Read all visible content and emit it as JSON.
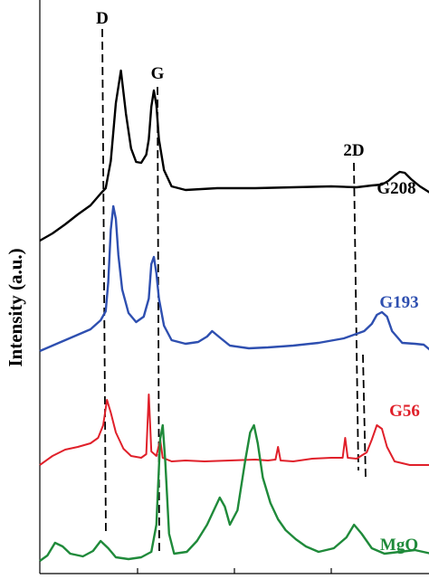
{
  "chart_data": {
    "type": "line",
    "title": "",
    "xlabel": "",
    "ylabel": "Intensity (a.u.)",
    "grid": false,
    "legend": "labels placed at the right end of each curve",
    "peak_labels": [
      "D",
      "G",
      "2D"
    ],
    "series": [
      {
        "name": "G208",
        "color": "#000000",
        "points": [
          [
            0,
            0
          ],
          [
            10,
            8
          ],
          [
            20,
            18
          ],
          [
            30,
            29
          ],
          [
            40,
            39
          ],
          [
            48,
            52
          ],
          [
            52,
            58
          ],
          [
            56,
            88
          ],
          [
            60,
            152
          ],
          [
            64,
            188
          ],
          [
            68,
            140
          ],
          [
            72,
            102
          ],
          [
            76,
            87
          ],
          [
            80,
            86
          ],
          [
            84,
            95
          ],
          [
            86,
            112
          ],
          [
            88,
            148
          ],
          [
            90,
            166
          ],
          [
            92,
            150
          ],
          [
            94,
            112
          ],
          [
            98,
            78
          ],
          [
            104,
            60
          ],
          [
            115,
            56
          ],
          [
            140,
            58
          ],
          [
            170,
            58
          ],
          [
            200,
            59
          ],
          [
            230,
            60
          ],
          [
            250,
            59
          ],
          [
            262,
            61
          ],
          [
            270,
            62
          ],
          [
            275,
            66
          ],
          [
            280,
            72
          ],
          [
            284,
            76
          ],
          [
            288,
            75
          ],
          [
            293,
            68
          ],
          [
            300,
            60
          ],
          [
            309,
            52
          ]
        ]
      },
      {
        "name": "G193",
        "color": "#2e4fb0",
        "points": [
          [
            0,
            0
          ],
          [
            10,
            6
          ],
          [
            20,
            12
          ],
          [
            30,
            18
          ],
          [
            40,
            24
          ],
          [
            48,
            34
          ],
          [
            52,
            44
          ],
          [
            54,
            76
          ],
          [
            56,
            134
          ],
          [
            58,
            160
          ],
          [
            60,
            146
          ],
          [
            62,
            106
          ],
          [
            65,
            68
          ],
          [
            70,
            42
          ],
          [
            76,
            32
          ],
          [
            82,
            38
          ],
          [
            86,
            58
          ],
          [
            88,
            96
          ],
          [
            90,
            104
          ],
          [
            92,
            86
          ],
          [
            94,
            58
          ],
          [
            98,
            28
          ],
          [
            104,
            12
          ],
          [
            115,
            8
          ],
          [
            125,
            10
          ],
          [
            132,
            16
          ],
          [
            136,
            22
          ],
          [
            142,
            15
          ],
          [
            150,
            6
          ],
          [
            165,
            3
          ],
          [
            180,
            4
          ],
          [
            200,
            6
          ],
          [
            220,
            9
          ],
          [
            240,
            14
          ],
          [
            256,
            22
          ],
          [
            262,
            30
          ],
          [
            266,
            40
          ],
          [
            270,
            43
          ],
          [
            274,
            38
          ],
          [
            278,
            22
          ],
          [
            286,
            9
          ],
          [
            296,
            8
          ],
          [
            303,
            7
          ],
          [
            309,
            0
          ]
        ]
      },
      {
        "name": "G56",
        "color": "#e0202a",
        "points": [
          [
            0,
            0
          ],
          [
            10,
            10
          ],
          [
            20,
            17
          ],
          [
            30,
            20
          ],
          [
            40,
            24
          ],
          [
            46,
            30
          ],
          [
            50,
            44
          ],
          [
            53,
            72
          ],
          [
            56,
            58
          ],
          [
            60,
            36
          ],
          [
            66,
            18
          ],
          [
            72,
            10
          ],
          [
            80,
            8
          ],
          [
            84,
            12
          ],
          [
            86,
            78
          ],
          [
            88,
            15
          ],
          [
            92,
            10
          ],
          [
            95,
            28
          ],
          [
            97,
            8
          ],
          [
            104,
            4
          ],
          [
            115,
            5
          ],
          [
            130,
            4
          ],
          [
            150,
            5
          ],
          [
            170,
            6
          ],
          [
            180,
            5
          ],
          [
            186,
            6
          ],
          [
            188,
            20
          ],
          [
            190,
            5
          ],
          [
            200,
            4
          ],
          [
            215,
            7
          ],
          [
            230,
            8
          ],
          [
            239,
            8
          ],
          [
            241,
            30
          ],
          [
            243,
            8
          ],
          [
            250,
            7
          ],
          [
            258,
            14
          ],
          [
            262,
            28
          ],
          [
            266,
            44
          ],
          [
            270,
            40
          ],
          [
            274,
            20
          ],
          [
            280,
            4
          ],
          [
            292,
            0
          ],
          [
            309,
            0
          ]
        ]
      },
      {
        "name": "MgO",
        "color": "#1f8a3a",
        "points": [
          [
            0,
            0
          ],
          [
            6,
            6
          ],
          [
            12,
            20
          ],
          [
            18,
            16
          ],
          [
            24,
            8
          ],
          [
            34,
            5
          ],
          [
            42,
            11
          ],
          [
            48,
            22
          ],
          [
            54,
            14
          ],
          [
            60,
            4
          ],
          [
            70,
            2
          ],
          [
            80,
            4
          ],
          [
            88,
            10
          ],
          [
            92,
            40
          ],
          [
            95,
            135
          ],
          [
            97,
            150
          ],
          [
            99,
            110
          ],
          [
            102,
            30
          ],
          [
            106,
            8
          ],
          [
            116,
            10
          ],
          [
            124,
            22
          ],
          [
            132,
            40
          ],
          [
            138,
            58
          ],
          [
            142,
            70
          ],
          [
            146,
            60
          ],
          [
            150,
            40
          ],
          [
            156,
            56
          ],
          [
            162,
            110
          ],
          [
            166,
            142
          ],
          [
            169,
            150
          ],
          [
            172,
            130
          ],
          [
            176,
            92
          ],
          [
            182,
            64
          ],
          [
            188,
            46
          ],
          [
            194,
            34
          ],
          [
            202,
            24
          ],
          [
            210,
            16
          ],
          [
            220,
            10
          ],
          [
            232,
            14
          ],
          [
            242,
            26
          ],
          [
            248,
            40
          ],
          [
            254,
            30
          ],
          [
            262,
            14
          ],
          [
            272,
            8
          ],
          [
            284,
            10
          ],
          [
            296,
            12
          ],
          [
            309,
            8
          ]
        ]
      }
    ]
  }
}
